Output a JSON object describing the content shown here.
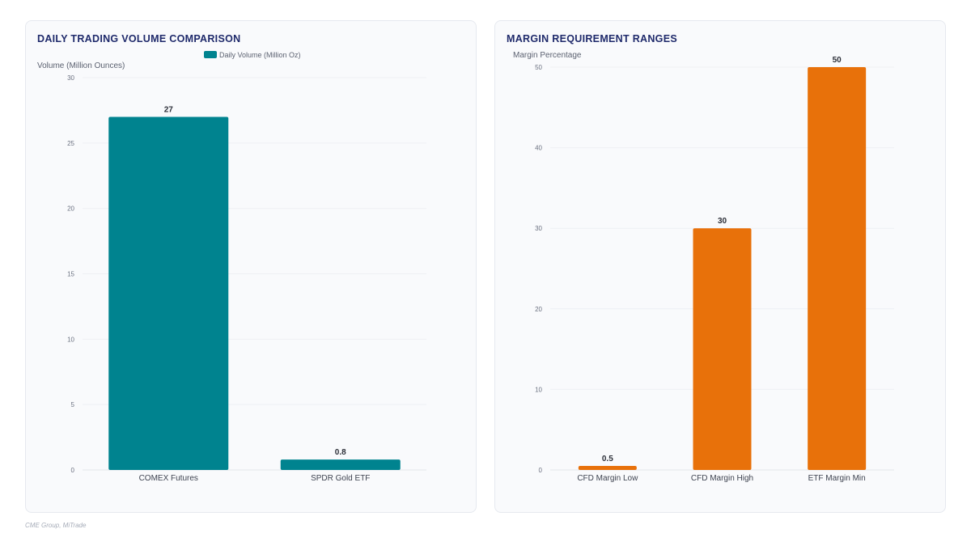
{
  "source_note": "CME Group, MiTrade",
  "colors": {
    "teal": "#00838f",
    "orange": "#e8710a"
  },
  "chart_data": [
    {
      "type": "bar",
      "title": "DAILY TRADING VOLUME COMPARISON",
      "ylabel": "Volume (Million Ounces)",
      "xlabel": "",
      "categories": [
        "COMEX Futures",
        "SPDR Gold ETF"
      ],
      "series": [
        {
          "name": "Daily Volume (Million Oz)",
          "values": [
            27,
            0.8
          ],
          "color": "#00838f"
        }
      ],
      "data_labels": [
        "27",
        "0.8"
      ],
      "ylim": [
        0,
        30
      ],
      "yticks": [
        0,
        5,
        10,
        15,
        20,
        25,
        30
      ],
      "legend": "top-center",
      "grid": true
    },
    {
      "type": "bar",
      "title": "MARGIN REQUIREMENT RANGES",
      "ylabel": "Margin Percentage",
      "xlabel": "",
      "categories": [
        "CFD Margin Low",
        "CFD Margin High",
        "ETF Margin Min"
      ],
      "series": [
        {
          "values": [
            0.5,
            30,
            50
          ],
          "color": "#e8710a"
        }
      ],
      "data_labels": [
        "0.5",
        "30",
        "50"
      ],
      "ylim": [
        0,
        50
      ],
      "yticks": [
        0,
        10,
        20,
        30,
        40,
        50
      ],
      "legend": "none",
      "grid": true
    }
  ]
}
